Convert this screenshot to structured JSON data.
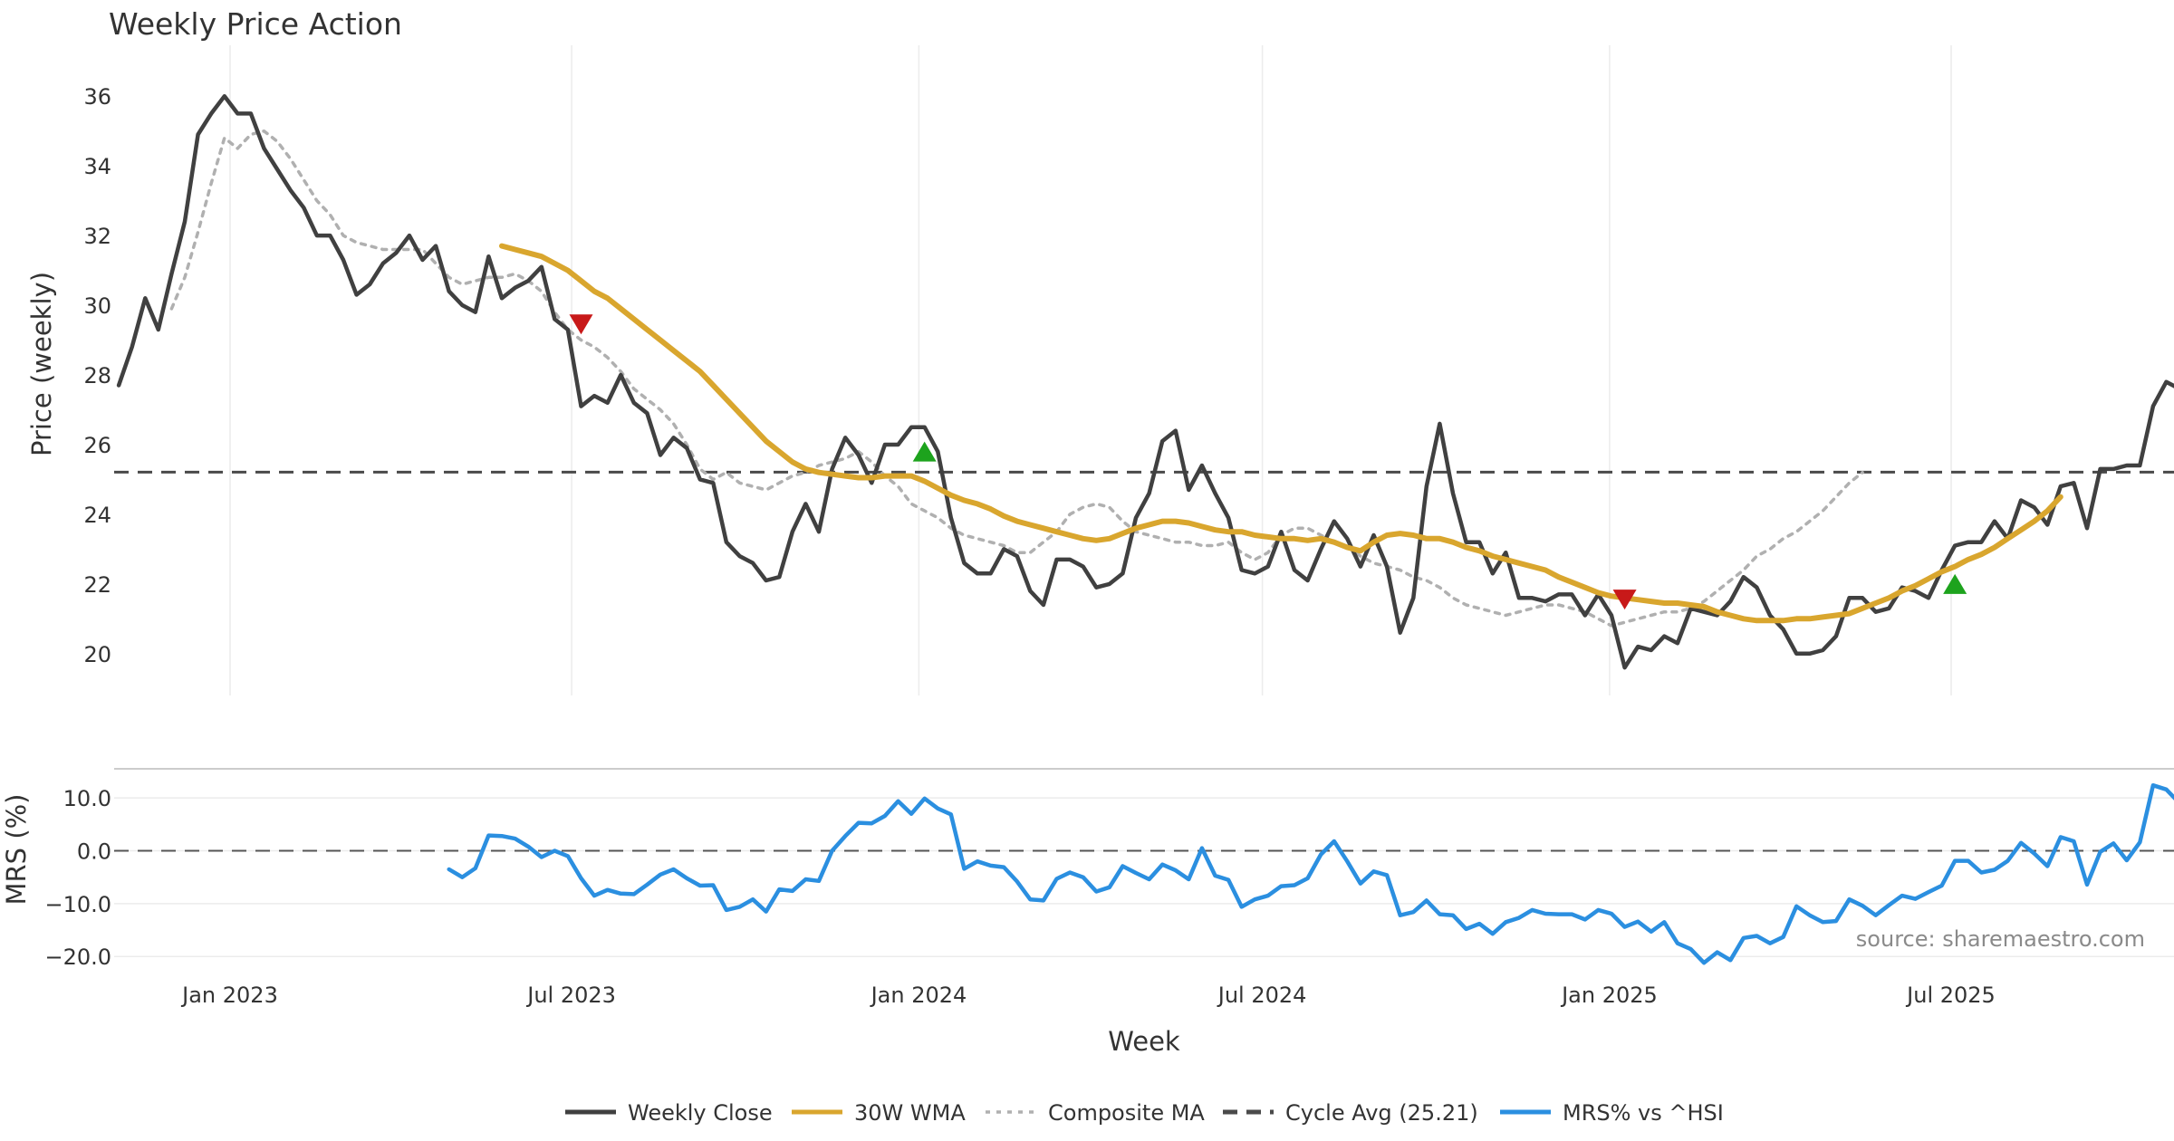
{
  "chart_data": {
    "type": "line",
    "title": "Weekly Price Action",
    "xlabel": "Week",
    "x_range": [
      "2022-11-03",
      "2025-11-13"
    ],
    "x_ticks": [
      {
        "date": "2023-01-01",
        "label": "Jan 2023"
      },
      {
        "date": "2023-07-01",
        "label": "Jul 2023"
      },
      {
        "date": "2024-01-01",
        "label": "Jan 2024"
      },
      {
        "date": "2024-07-01",
        "label": "Jul 2024"
      },
      {
        "date": "2025-01-01",
        "label": "Jan 2025"
      },
      {
        "date": "2025-07-01",
        "label": "Jul 2025"
      }
    ],
    "price_panel": {
      "ylabel": "Price (weekly)",
      "ylim": [
        18.8,
        37.2
      ],
      "yticks": [
        20,
        22,
        24,
        26,
        28,
        30,
        32,
        34,
        36
      ],
      "x_start": "2022-11-03",
      "week_step_days": 7,
      "series": [
        {
          "name": "Weekly Close",
          "color": "#404040",
          "style": "solid",
          "start_index": 0,
          "values": [
            27.7,
            28.8,
            30.2,
            29.3,
            30.9,
            32.4,
            34.9,
            35.5,
            36.0,
            35.5,
            35.5,
            34.5,
            33.9,
            33.3,
            32.8,
            32.0,
            32.0,
            31.3,
            30.3,
            30.6,
            31.2,
            31.5,
            32.0,
            31.3,
            31.7,
            30.4,
            30.0,
            29.8,
            31.4,
            30.2,
            30.5,
            30.7,
            31.1,
            29.6,
            29.3,
            27.1,
            27.4,
            27.2,
            28.0,
            27.2,
            26.9,
            25.7,
            26.2,
            25.9,
            25.0,
            24.9,
            23.2,
            22.8,
            22.6,
            22.1,
            22.2,
            23.5,
            24.3,
            23.5,
            25.3,
            26.2,
            25.7,
            24.9,
            26.0,
            26.0,
            26.5,
            26.5,
            25.8,
            23.9,
            22.6,
            22.3,
            22.3,
            23.0,
            22.8,
            21.8,
            21.4,
            22.7,
            22.7,
            22.5,
            21.9,
            22.0,
            22.3,
            23.9,
            24.6,
            26.1,
            26.4,
            24.7,
            25.4,
            24.6,
            23.9,
            22.4,
            22.3,
            22.5,
            23.5,
            22.4,
            22.1,
            23.0,
            23.8,
            23.3,
            22.5,
            23.4,
            22.5,
            20.6,
            21.6,
            24.8,
            26.6,
            24.6,
            23.2,
            23.2,
            22.3,
            22.9,
            21.6,
            21.6,
            21.5,
            21.7,
            21.7,
            21.1,
            21.7,
            21.1,
            19.6,
            20.2,
            20.1,
            20.5,
            20.3,
            21.3,
            21.2,
            21.1,
            21.5,
            22.2,
            21.9,
            21.1,
            20.7,
            20.0,
            20.0,
            20.1,
            20.5,
            21.6,
            21.6,
            21.2,
            21.3,
            21.9,
            21.8,
            21.6,
            22.4,
            23.1,
            23.2,
            23.2,
            23.8,
            23.3,
            24.4,
            24.2,
            23.7,
            24.8,
            24.9,
            23.6,
            25.3,
            25.3,
            25.4,
            25.4,
            27.1,
            27.8,
            27.6
          ]
        },
        {
          "name": "30W WMA",
          "color": "#d9a62e",
          "style": "solid",
          "start_index": 29,
          "values": [
            31.7,
            31.6,
            31.5,
            31.4,
            31.2,
            31.0,
            30.7,
            30.4,
            30.2,
            29.9,
            29.6,
            29.3,
            29.0,
            28.7,
            28.4,
            28.1,
            27.7,
            27.3,
            26.9,
            26.5,
            26.1,
            25.8,
            25.5,
            25.3,
            25.2,
            25.15,
            25.1,
            25.05,
            25.05,
            25.1,
            25.1,
            25.1,
            24.95,
            24.75,
            24.55,
            24.4,
            24.3,
            24.15,
            23.95,
            23.8,
            23.7,
            23.6,
            23.5,
            23.4,
            23.3,
            23.25,
            23.3,
            23.45,
            23.6,
            23.7,
            23.8,
            23.8,
            23.75,
            23.65,
            23.55,
            23.5,
            23.5,
            23.4,
            23.35,
            23.3,
            23.3,
            23.25,
            23.3,
            23.2,
            23.05,
            22.95,
            23.2,
            23.4,
            23.45,
            23.4,
            23.3,
            23.3,
            23.2,
            23.05,
            22.95,
            22.8,
            22.7,
            22.6,
            22.5,
            22.4,
            22.2,
            22.05,
            21.9,
            21.75,
            21.65,
            21.6,
            21.55,
            21.5,
            21.45,
            21.45,
            21.4,
            21.35,
            21.2,
            21.1,
            21.0,
            20.95,
            20.95,
            20.95,
            21.0,
            21.0,
            21.05,
            21.1,
            21.15,
            21.3,
            21.45,
            21.6,
            21.8,
            21.95,
            22.15,
            22.35,
            22.5,
            22.7,
            22.85,
            23.05,
            23.3,
            23.55,
            23.8,
            24.1,
            24.5
          ]
        },
        {
          "name": "Composite MA",
          "color": "#b0b0b0",
          "style": "dotted",
          "start_index": 4,
          "values": [
            29.9,
            30.8,
            32.1,
            33.5,
            34.8,
            34.5,
            34.9,
            35.0,
            34.7,
            34.2,
            33.6,
            33.0,
            32.6,
            32.0,
            31.8,
            31.7,
            31.6,
            31.6,
            31.6,
            31.6,
            31.2,
            30.8,
            30.6,
            30.7,
            30.8,
            30.8,
            30.9,
            30.7,
            30.4,
            29.8,
            29.3,
            29.0,
            28.8,
            28.5,
            28.1,
            27.6,
            27.3,
            27.0,
            26.6,
            26.0,
            25.3,
            25.0,
            25.2,
            24.9,
            24.8,
            24.7,
            24.9,
            25.1,
            25.2,
            25.4,
            25.5,
            25.6,
            25.8,
            25.5,
            25.1,
            24.8,
            24.3,
            24.1,
            23.9,
            23.6,
            23.4,
            23.3,
            23.2,
            23.1,
            22.9,
            22.9,
            23.2,
            23.5,
            24.0,
            24.2,
            24.3,
            24.2,
            23.8,
            23.5,
            23.4,
            23.3,
            23.2,
            23.2,
            23.1,
            23.1,
            23.2,
            22.9,
            22.7,
            22.9,
            23.4,
            23.6,
            23.6,
            23.4,
            23.2,
            23.1,
            22.8,
            22.6,
            22.5,
            22.4,
            22.2,
            22.1,
            21.9,
            21.6,
            21.4,
            21.3,
            21.2,
            21.1,
            21.2,
            21.3,
            21.4,
            21.4,
            21.3,
            21.2,
            21.0,
            20.8,
            20.9,
            21.0,
            21.1,
            21.2,
            21.2,
            21.3,
            21.5,
            21.8,
            22.1,
            22.4,
            22.8,
            23.0,
            23.3,
            23.5,
            23.8,
            24.1,
            24.5,
            24.9,
            25.2
          ]
        }
      ],
      "cycle_avg": {
        "name": "Cycle Avg (25.21)",
        "value": 25.21,
        "color": "#4a4a4a",
        "style": "dashed"
      },
      "signals": [
        {
          "type": "sell",
          "week_index": 35,
          "value": 29.45,
          "color": "#c81919"
        },
        {
          "type": "buy",
          "week_index": 61,
          "value": 25.8,
          "color": "#1da31d"
        },
        {
          "type": "sell",
          "week_index": 114,
          "value": 21.55,
          "color": "#c81919"
        },
        {
          "type": "buy",
          "week_index": 139,
          "value": 22.0,
          "color": "#1da31d"
        }
      ]
    },
    "mrs_panel": {
      "ylabel": "MRS (%)",
      "ylim": [
        -21.5,
        15.0
      ],
      "yticks": [
        -20.0,
        -10.0,
        0.0,
        10.0
      ],
      "ytick_labels": [
        "−20.0",
        "−10.0",
        "0.0",
        "10.0"
      ],
      "zero_line": {
        "value": 0,
        "color": "#555555",
        "style": "dashed"
      },
      "series": [
        {
          "name": "MRS% vs ^HSI",
          "color": "#2b8fe0",
          "style": "solid",
          "start_index": 25,
          "values": [
            -3.5,
            -5.0,
            -3.3,
            2.9,
            2.8,
            2.3,
            0.8,
            -1.2,
            0.0,
            -1.0,
            -5.2,
            -8.5,
            -7.4,
            -8.1,
            -8.2,
            -6.4,
            -4.5,
            -3.5,
            -5.2,
            -6.6,
            -6.5,
            -11.2,
            -10.6,
            -9.2,
            -11.5,
            -7.3,
            -7.6,
            -5.4,
            -5.7,
            0.0,
            2.8,
            5.3,
            5.2,
            6.6,
            9.4,
            7.0,
            9.9,
            8.0,
            6.9,
            -3.4,
            -2.0,
            -2.8,
            -3.1,
            -5.8,
            -9.2,
            -9.4,
            -5.3,
            -4.1,
            -5.0,
            -7.7,
            -6.9,
            -2.9,
            -4.2,
            -5.4,
            -2.6,
            -3.7,
            -5.4,
            0.5,
            -4.7,
            -5.5,
            -10.6,
            -9.2,
            -8.5,
            -6.7,
            -6.5,
            -5.2,
            -0.7,
            1.8,
            -2.0,
            -6.2,
            -3.9,
            -4.6,
            -12.2,
            -11.6,
            -9.4,
            -12.0,
            -12.2,
            -14.8,
            -13.8,
            -15.7,
            -13.5,
            -12.7,
            -11.2,
            -11.9,
            -12.0,
            -12.0,
            -13.0,
            -11.2,
            -11.9,
            -14.4,
            -13.4,
            -15.3,
            -13.5,
            -17.5,
            -18.6,
            -21.2,
            -19.2,
            -20.7,
            -16.5,
            -16.1,
            -17.5,
            -16.3,
            -10.5,
            -12.2,
            -13.5,
            -13.3,
            -9.2,
            -10.4,
            -12.2,
            -10.3,
            -8.5,
            -9.1,
            -7.8,
            -6.6,
            -1.9,
            -1.9,
            -4.1,
            -3.6,
            -1.9,
            1.5,
            -0.5,
            -2.9,
            2.6,
            1.8,
            -6.4,
            -0.2,
            1.4,
            -1.8,
            1.6,
            12.4,
            11.6,
            9.0
          ]
        }
      ]
    },
    "legend": [
      {
        "label": "Weekly Close",
        "color": "#404040",
        "style": "solid"
      },
      {
        "label": "30W WMA",
        "color": "#d9a62e",
        "style": "solid"
      },
      {
        "label": "Composite MA",
        "color": "#b0b0b0",
        "style": "dotted"
      },
      {
        "label": "Cycle Avg (25.21)",
        "color": "#4a4a4a",
        "style": "dashed"
      },
      {
        "label": "MRS% vs ^HSI",
        "color": "#2b8fe0",
        "style": "solid"
      }
    ],
    "legend_position": "bottom-center",
    "source_note": "source: sharemaestro.com"
  }
}
